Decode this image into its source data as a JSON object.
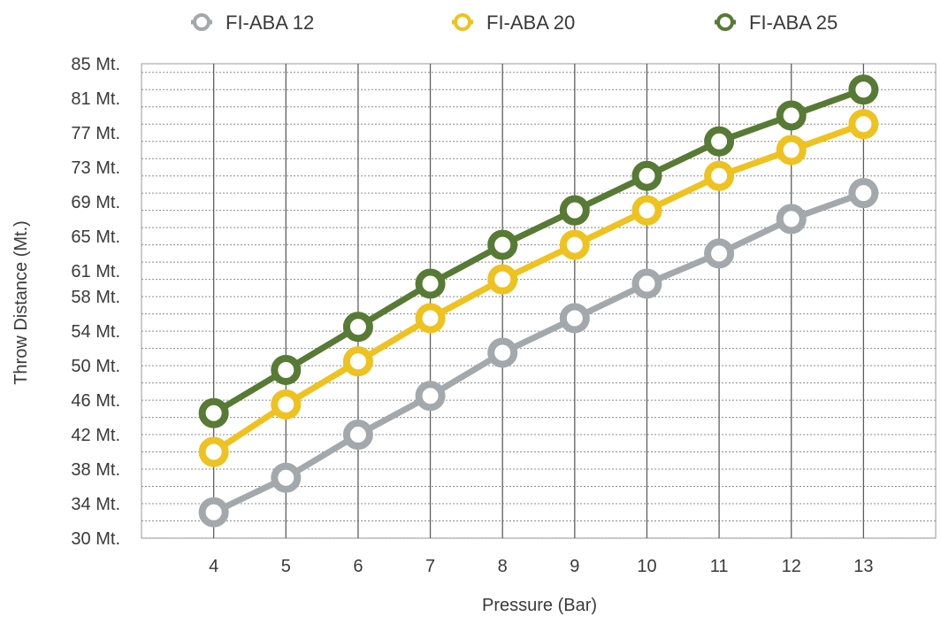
{
  "chart_data": {
    "type": "line",
    "title": "",
    "xlabel": "Pressure (Bar)",
    "ylabel": "Throw Distance (Mt.)",
    "x": [
      4,
      5,
      6,
      7,
      8,
      9,
      10,
      11,
      12,
      13
    ],
    "x_tick_labels": [
      "4",
      "5",
      "6",
      "7",
      "8",
      "9",
      "10",
      "11",
      "12",
      "13"
    ],
    "xlim": [
      3,
      14
    ],
    "ylim": [
      30,
      85
    ],
    "y_tick_values": [
      30,
      34,
      38,
      42,
      46,
      50,
      54,
      58,
      61,
      65,
      69,
      73,
      77,
      81,
      85
    ],
    "y_tick_labels": [
      "30 Mt.",
      "34 Mt.",
      "38 Mt.",
      "42 Mt.",
      "46 Mt.",
      "50 Mt.",
      "54 Mt.",
      "58 Mt.",
      "61 Mt.",
      "65 Mt.",
      "69 Mt.",
      "73 Mt.",
      "77 Mt.",
      "81 Mt.",
      "85 Mt."
    ],
    "grid": true,
    "legend_position": "top",
    "series": [
      {
        "name": "FI-ABA 12",
        "color": "#A2A8AB",
        "values": [
          33,
          37,
          42,
          46.5,
          51.5,
          55.5,
          59.5,
          63,
          67,
          70
        ]
      },
      {
        "name": "FI-ABA 20",
        "color": "#EEC21F",
        "values": [
          40,
          45.5,
          50.5,
          55.5,
          60,
          64,
          68,
          72,
          75,
          78
        ]
      },
      {
        "name": "FI-ABA 25",
        "color": "#577A35",
        "values": [
          44.5,
          49.5,
          54.5,
          59.5,
          64,
          68,
          72,
          76,
          79,
          82
        ]
      }
    ]
  }
}
